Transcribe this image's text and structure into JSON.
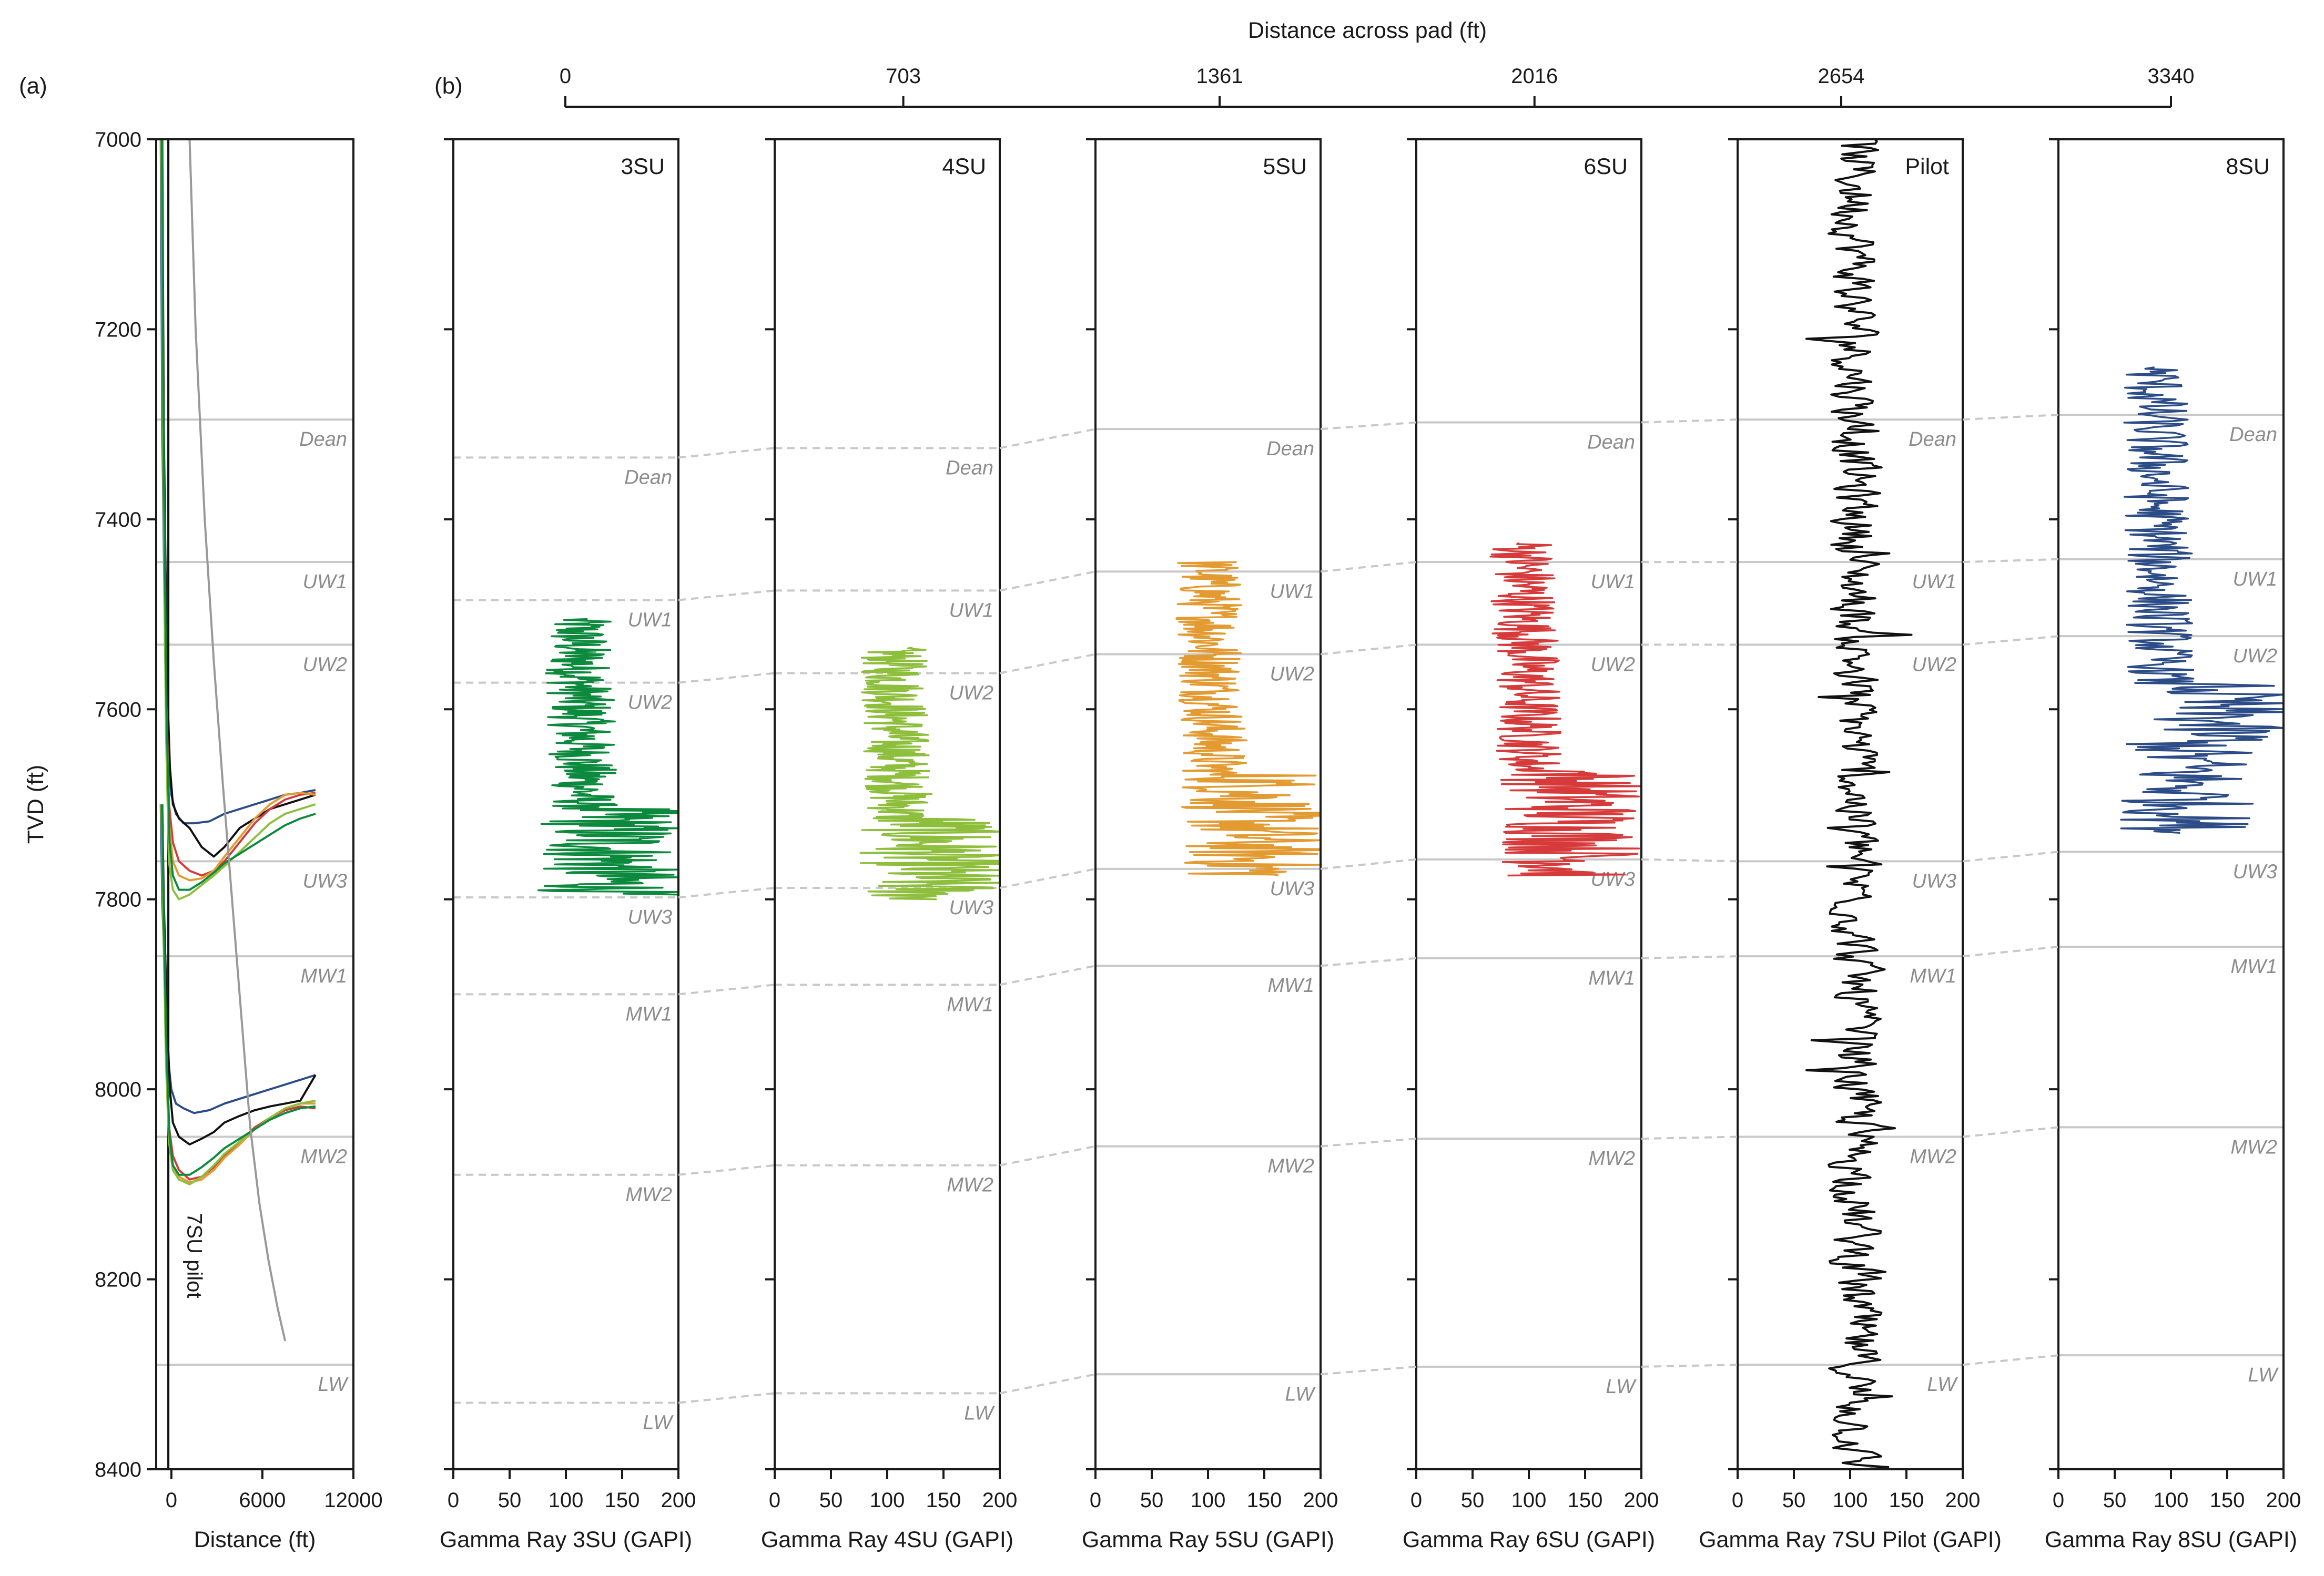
{
  "panel_labels": {
    "a": "(a)",
    "b": "(b)"
  },
  "colors": {
    "axis": "#1a1a1a",
    "formation_line": "#c8c8c8",
    "formation_text": "#8c8c8c",
    "3SU": "#0b8a3e",
    "4SU": "#8dbf3c",
    "5SU": "#e39b31",
    "6SU": "#d63a3a",
    "7SU_pilot": "#111111",
    "8SU": "#2b4c86"
  },
  "chart_data": [
    {
      "type": "line",
      "panel": "(a)",
      "xlabel": "Distance (ft)",
      "ylabel": "TVD (ft)",
      "xlim": [
        -1000,
        12000
      ],
      "ylim": [
        8400,
        7000
      ],
      "x_ticks": [
        0,
        6000,
        12000
      ],
      "y_ticks": [
        7000,
        7200,
        7400,
        7600,
        7800,
        8000,
        8200,
        8400
      ],
      "annotation": "7SU pilot",
      "formation_tops": [
        {
          "name": "Dean",
          "tvd": 7295
        },
        {
          "name": "UW1",
          "tvd": 7445
        },
        {
          "name": "UW2",
          "tvd": 7532
        },
        {
          "name": "UW3",
          "tvd": 7760
        },
        {
          "name": "MW1",
          "tvd": 7860
        },
        {
          "name": "MW2",
          "tvd": 8050
        },
        {
          "name": "LW",
          "tvd": 8290
        }
      ],
      "series": [
        {
          "color": "#2b4c86",
          "x": [
            -700,
            -600,
            -400,
            -200,
            0,
            300,
            800,
            1500,
            2500,
            3500,
            4500,
            5500,
            6500,
            7500,
            8500,
            9500
          ],
          "y": [
            7000,
            7300,
            7550,
            7650,
            7690,
            7710,
            7720,
            7720,
            7718,
            7710,
            7705,
            7700,
            7695,
            7690,
            7688,
            7685
          ]
        },
        {
          "color": "#111111",
          "x": [
            -600,
            -500,
            -300,
            -100,
            100,
            500,
            1200,
            2000,
            2800,
            3500,
            4500,
            5500,
            6500,
            7500,
            8500,
            9500
          ],
          "y": [
            7000,
            7300,
            7560,
            7660,
            7700,
            7715,
            7725,
            7745,
            7755,
            7745,
            7725,
            7715,
            7705,
            7700,
            7695,
            7690
          ]
        },
        {
          "color": "#d63a3a",
          "x": [
            -650,
            -550,
            -350,
            -150,
            100,
            500,
            1200,
            2000,
            2800,
            3500,
            4500,
            5500,
            6500,
            7500,
            8500,
            9500
          ],
          "y": [
            7000,
            7300,
            7580,
            7700,
            7740,
            7760,
            7770,
            7775,
            7770,
            7760,
            7740,
            7720,
            7705,
            7695,
            7690,
            7688
          ]
        },
        {
          "color": "#e39b31",
          "x": [
            -640,
            -540,
            -340,
            -140,
            100,
            500,
            1200,
            2000,
            2800,
            3500,
            4500,
            5500,
            6500,
            7500,
            8500,
            9500
          ],
          "y": [
            7000,
            7300,
            7590,
            7720,
            7760,
            7775,
            7780,
            7778,
            7770,
            7755,
            7735,
            7715,
            7700,
            7690,
            7688,
            7690
          ]
        },
        {
          "color": "#8dbf3c",
          "x": [
            -660,
            -560,
            -360,
            -160,
            100,
            500,
            1200,
            2000,
            2800,
            3500,
            4500,
            5500,
            6500,
            7500,
            8500,
            9500
          ],
          "y": [
            7000,
            7300,
            7620,
            7760,
            7790,
            7800,
            7795,
            7785,
            7775,
            7765,
            7750,
            7735,
            7720,
            7710,
            7705,
            7700
          ]
        },
        {
          "color": "#0b8a3e",
          "x": [
            -620,
            -520,
            -320,
            -120,
            100,
            500,
            1200,
            2000,
            2800,
            3500,
            4500,
            5500,
            6500,
            7500,
            8500,
            9500
          ],
          "y": [
            7000,
            7300,
            7600,
            7740,
            7775,
            7790,
            7790,
            7782,
            7772,
            7762,
            7752,
            7742,
            7732,
            7722,
            7715,
            7710
          ]
        },
        {
          "color": "#2b4c86",
          "x": [
            -700,
            -600,
            -400,
            -200,
            0,
            300,
            800,
            1500,
            2500,
            3500,
            4500,
            5500,
            6500,
            7500,
            8500,
            9500
          ],
          "y": [
            7700,
            7800,
            7900,
            7970,
            8000,
            8015,
            8020,
            8025,
            8022,
            8015,
            8010,
            8005,
            8000,
            7995,
            7990,
            7985
          ]
        },
        {
          "color": "#111111",
          "x": [
            -600,
            -500,
            -300,
            -100,
            100,
            500,
            1200,
            2000,
            2800,
            3500,
            4500,
            5500,
            6500,
            7500,
            8500,
            9500
          ],
          "y": [
            7700,
            7800,
            7920,
            8000,
            8035,
            8050,
            8058,
            8052,
            8045,
            8035,
            8028,
            8022,
            8018,
            8015,
            8012,
            7985
          ]
        },
        {
          "color": "#d63a3a",
          "x": [
            -650,
            -550,
            -350,
            -150,
            100,
            500,
            1200,
            2000,
            2800,
            3500,
            4500,
            5500,
            6500,
            7500,
            8500,
            9500
          ],
          "y": [
            7700,
            7800,
            7950,
            8040,
            8070,
            8085,
            8095,
            8092,
            8082,
            8070,
            8055,
            8040,
            8030,
            8022,
            8018,
            8020
          ]
        },
        {
          "color": "#e39b31",
          "x": [
            -640,
            -540,
            -340,
            -140,
            100,
            500,
            1200,
            2000,
            2800,
            3500,
            4500,
            5500,
            6500,
            7500,
            8500,
            9500
          ],
          "y": [
            7700,
            7800,
            7960,
            8050,
            8080,
            8092,
            8098,
            8095,
            8085,
            8072,
            8058,
            8042,
            8030,
            8020,
            8015,
            8015
          ]
        },
        {
          "color": "#8dbf3c",
          "x": [
            -660,
            -560,
            -360,
            -160,
            100,
            500,
            1200,
            2000,
            2800,
            3500,
            4500,
            5500,
            6500,
            7500,
            8500,
            9500
          ],
          "y": [
            7700,
            7800,
            7970,
            8055,
            8085,
            8095,
            8100,
            8092,
            8080,
            8068,
            8055,
            8042,
            8030,
            8020,
            8015,
            8012
          ]
        },
        {
          "color": "#0b8a3e",
          "x": [
            -620,
            -520,
            -320,
            -120,
            100,
            500,
            1200,
            2000,
            2800,
            3500,
            4500,
            5500,
            6500,
            7500,
            8500,
            9500
          ],
          "y": [
            7700,
            7800,
            7960,
            8050,
            8080,
            8090,
            8090,
            8082,
            8072,
            8062,
            8052,
            8042,
            8032,
            8025,
            8020,
            8018
          ]
        },
        {
          "color": "#999999",
          "x": [
            1200,
            1600,
            2200,
            2800,
            3400,
            4000,
            4600,
            5200,
            5800,
            6400,
            7000,
            7500
          ],
          "y": [
            7000,
            7200,
            7400,
            7550,
            7680,
            7800,
            7920,
            8040,
            8120,
            8180,
            8230,
            8265
          ]
        }
      ]
    },
    {
      "type": "line",
      "panel": "(b)",
      "top_axis": {
        "title": "Distance across pad (ft)",
        "ticks": [
          "0",
          "703",
          "1361",
          "2016",
          "2654",
          "3340"
        ]
      },
      "ylim": [
        8400,
        7000
      ],
      "tracks": [
        {
          "name": "3SU",
          "xlabel": "Gamma Ray 3SU (GAPI)",
          "xlim": [
            0,
            200
          ],
          "x_ticks": [
            0,
            50,
            100,
            150,
            200
          ],
          "color": "#0b8a3e",
          "gr_range": [
            7505,
            7795
          ],
          "formation_tops": [
            {
              "name": "Dean",
              "tvd": 7335
            },
            {
              "name": "UW1",
              "tvd": 7485
            },
            {
              "name": "UW2",
              "tvd": 7572
            },
            {
              "name": "UW3",
              "tvd": 7798
            },
            {
              "name": "MW1",
              "tvd": 7900
            },
            {
              "name": "MW2",
              "tvd": 8090
            },
            {
              "name": "LW",
              "tvd": 8330
            }
          ]
        },
        {
          "name": "4SU",
          "xlabel": "Gamma Ray 4SU (GAPI)",
          "xlim": [
            0,
            200
          ],
          "x_ticks": [
            0,
            50,
            100,
            150,
            200
          ],
          "color": "#8dbf3c",
          "gr_range": [
            7535,
            7800
          ],
          "formation_tops": [
            {
              "name": "Dean",
              "tvd": 7325
            },
            {
              "name": "UW1",
              "tvd": 7475
            },
            {
              "name": "UW2",
              "tvd": 7562
            },
            {
              "name": "UW3",
              "tvd": 7788
            },
            {
              "name": "MW1",
              "tvd": 7890
            },
            {
              "name": "MW2",
              "tvd": 8080
            },
            {
              "name": "LW",
              "tvd": 8320
            }
          ]
        },
        {
          "name": "5SU",
          "xlabel": "Gamma Ray 5SU (GAPI)",
          "xlim": [
            0,
            200
          ],
          "x_ticks": [
            0,
            50,
            100,
            150,
            200
          ],
          "color": "#e39b31",
          "gr_range": [
            7445,
            7775
          ],
          "formation_tops": [
            {
              "name": "Dean",
              "tvd": 7305
            },
            {
              "name": "UW1",
              "tvd": 7455
            },
            {
              "name": "UW2",
              "tvd": 7542
            },
            {
              "name": "UW3",
              "tvd": 7768
            },
            {
              "name": "MW1",
              "tvd": 7870
            },
            {
              "name": "MW2",
              "tvd": 8060
            },
            {
              "name": "LW",
              "tvd": 8300
            }
          ]
        },
        {
          "name": "6SU",
          "xlabel": "Gamma Ray 6SU (GAPI)",
          "xlim": [
            0,
            200
          ],
          "x_ticks": [
            0,
            50,
            100,
            150,
            200
          ],
          "color": "#d63a3a",
          "gr_range": [
            7425,
            7775
          ],
          "formation_tops": [
            {
              "name": "Dean",
              "tvd": 7298
            },
            {
              "name": "UW1",
              "tvd": 7445
            },
            {
              "name": "UW2",
              "tvd": 7532
            },
            {
              "name": "UW3",
              "tvd": 7758
            },
            {
              "name": "MW1",
              "tvd": 7862
            },
            {
              "name": "MW2",
              "tvd": 8052
            },
            {
              "name": "LW",
              "tvd": 8292
            }
          ]
        },
        {
          "name": "Pilot",
          "xlabel": "Gamma Ray 7SU Pilot (GAPI)",
          "xlim": [
            0,
            200
          ],
          "x_ticks": [
            0,
            50,
            100,
            150,
            200
          ],
          "color": "#111111",
          "gr_range": [
            7000,
            8400
          ],
          "formation_tops": [
            {
              "name": "Dean",
              "tvd": 7295
            },
            {
              "name": "UW1",
              "tvd": 7445
            },
            {
              "name": "UW2",
              "tvd": 7532
            },
            {
              "name": "UW3",
              "tvd": 7760
            },
            {
              "name": "MW1",
              "tvd": 7860
            },
            {
              "name": "MW2",
              "tvd": 8050
            },
            {
              "name": "LW",
              "tvd": 8290
            }
          ]
        },
        {
          "name": "8SU",
          "xlabel": "Gamma Ray 8SU (GAPI)",
          "xlim": [
            0,
            200
          ],
          "x_ticks": [
            0,
            50,
            100,
            150,
            200
          ],
          "color": "#2b4c86",
          "gr_range": [
            7240,
            7730
          ],
          "formation_tops": [
            {
              "name": "Dean",
              "tvd": 7290
            },
            {
              "name": "UW1",
              "tvd": 7442
            },
            {
              "name": "UW2",
              "tvd": 7523
            },
            {
              "name": "UW3",
              "tvd": 7750
            },
            {
              "name": "MW1",
              "tvd": 7850
            },
            {
              "name": "MW2",
              "tvd": 8040
            },
            {
              "name": "LW",
              "tvd": 8280
            }
          ]
        }
      ]
    }
  ]
}
